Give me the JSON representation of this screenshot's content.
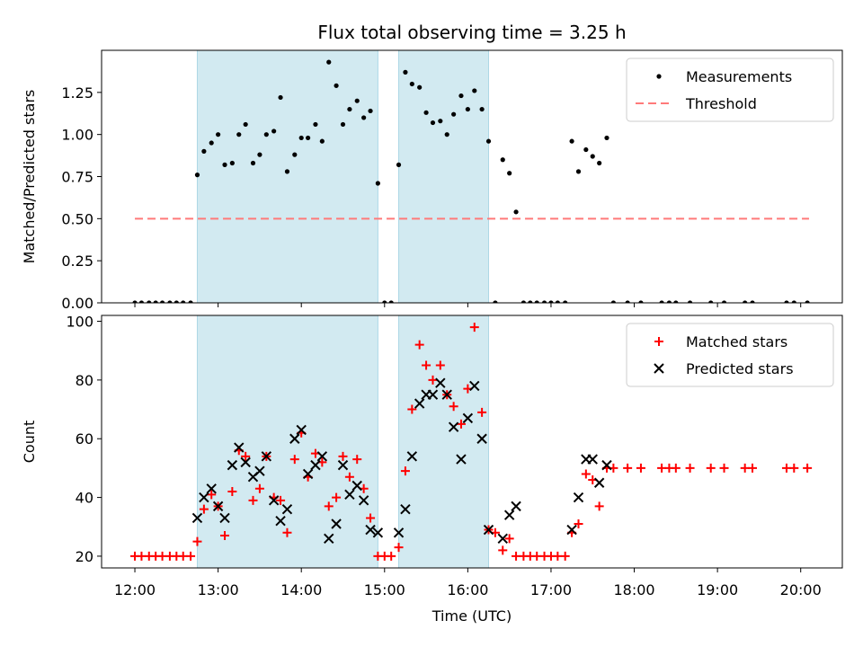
{
  "figure": {
    "title": "Flux total observing time = 3.25 h"
  },
  "chart_data": [
    {
      "type": "scatter",
      "panel": "top",
      "ylabel": "Matched/Predicted stars",
      "xlabel": "",
      "x_unit": "hours (UTC)",
      "xlim": [
        11.6,
        20.5
      ],
      "ylim": [
        0,
        1.5
      ],
      "yticks": [
        {
          "value": 0,
          "label": "0.00"
        },
        {
          "value": 0.25,
          "label": "0.25"
        },
        {
          "value": 0.5,
          "label": "0.50"
        },
        {
          "value": 0.75,
          "label": "0.75"
        },
        {
          "value": 1.0,
          "label": "1.00"
        },
        {
          "value": 1.25,
          "label": "1.25"
        }
      ],
      "shaded_intervals": [
        [
          12.75,
          14.92
        ],
        [
          15.17,
          16.25
        ]
      ],
      "shade_color": "#add8e6",
      "legend": {
        "position": "top-right",
        "entries": [
          "Measurements",
          "Threshold"
        ]
      },
      "series": [
        {
          "name": "Measurements",
          "marker": "dot",
          "color": "#000000",
          "points": [
            [
              12.0,
              0
            ],
            [
              12.08,
              0
            ],
            [
              12.17,
              0
            ],
            [
              12.25,
              0
            ],
            [
              12.33,
              0
            ],
            [
              12.42,
              0
            ],
            [
              12.5,
              0
            ],
            [
              12.58,
              0
            ],
            [
              12.67,
              0
            ],
            [
              12.75,
              0.76
            ],
            [
              12.83,
              0.9
            ],
            [
              12.92,
              0.95
            ],
            [
              13.0,
              1.0
            ],
            [
              13.08,
              0.82
            ],
            [
              13.17,
              0.83
            ],
            [
              13.25,
              1.0
            ],
            [
              13.33,
              1.06
            ],
            [
              13.42,
              0.83
            ],
            [
              13.5,
              0.88
            ],
            [
              13.58,
              1.0
            ],
            [
              13.67,
              1.02
            ],
            [
              13.75,
              1.22
            ],
            [
              13.83,
              0.78
            ],
            [
              13.92,
              0.88
            ],
            [
              14.0,
              0.98
            ],
            [
              14.08,
              0.98
            ],
            [
              14.17,
              1.06
            ],
            [
              14.25,
              0.96
            ],
            [
              14.33,
              1.43
            ],
            [
              14.42,
              1.29
            ],
            [
              14.5,
              1.06
            ],
            [
              14.58,
              1.15
            ],
            [
              14.67,
              1.2
            ],
            [
              14.75,
              1.1
            ],
            [
              14.83,
              1.14
            ],
            [
              14.92,
              0.71
            ],
            [
              15.0,
              0
            ],
            [
              15.08,
              0
            ],
            [
              15.17,
              0.82
            ],
            [
              15.25,
              1.37
            ],
            [
              15.33,
              1.3
            ],
            [
              15.42,
              1.28
            ],
            [
              15.5,
              1.13
            ],
            [
              15.58,
              1.07
            ],
            [
              15.67,
              1.08
            ],
            [
              15.75,
              1.0
            ],
            [
              15.83,
              1.12
            ],
            [
              15.92,
              1.23
            ],
            [
              16.0,
              1.15
            ],
            [
              16.08,
              1.26
            ],
            [
              16.17,
              1.15
            ],
            [
              16.25,
              0.96
            ],
            [
              16.33,
              0
            ],
            [
              16.42,
              0.85
            ],
            [
              16.5,
              0.77
            ],
            [
              16.58,
              0.54
            ],
            [
              16.67,
              0
            ],
            [
              16.75,
              0
            ],
            [
              16.83,
              0
            ],
            [
              16.92,
              0
            ],
            [
              17.0,
              0
            ],
            [
              17.08,
              0
            ],
            [
              17.17,
              0
            ],
            [
              17.25,
              0.96
            ],
            [
              17.33,
              0.78
            ],
            [
              17.42,
              0.91
            ],
            [
              17.5,
              0.87
            ],
            [
              17.58,
              0.83
            ],
            [
              17.67,
              0.98
            ],
            [
              17.75,
              0
            ],
            [
              17.92,
              0
            ],
            [
              18.08,
              0
            ],
            [
              18.33,
              0
            ],
            [
              18.42,
              0
            ],
            [
              18.5,
              0
            ],
            [
              18.67,
              0
            ],
            [
              18.92,
              0
            ],
            [
              19.08,
              0
            ],
            [
              19.33,
              0
            ],
            [
              19.42,
              0
            ],
            [
              19.83,
              0
            ],
            [
              19.92,
              0
            ],
            [
              20.08,
              0
            ]
          ]
        },
        {
          "name": "Threshold",
          "line_style": "dashed",
          "color": "#ff7a7a",
          "points": [
            [
              12.0,
              0.5
            ],
            [
              20.1,
              0.5
            ]
          ]
        }
      ]
    },
    {
      "type": "scatter",
      "panel": "bottom",
      "ylabel": "Count",
      "xlabel": "Time (UTC)",
      "x_unit": "hours (UTC)",
      "xlim": [
        11.6,
        20.5
      ],
      "ylim": [
        16,
        102
      ],
      "yticks": [
        {
          "value": 20,
          "label": "20"
        },
        {
          "value": 40,
          "label": "40"
        },
        {
          "value": 60,
          "label": "60"
        },
        {
          "value": 80,
          "label": "80"
        },
        {
          "value": 100,
          "label": "100"
        }
      ],
      "xticks": [
        {
          "value": 12,
          "label": "12:00"
        },
        {
          "value": 13,
          "label": "13:00"
        },
        {
          "value": 14,
          "label": "14:00"
        },
        {
          "value": 15,
          "label": "15:00"
        },
        {
          "value": 16,
          "label": "16:00"
        },
        {
          "value": 17,
          "label": "17:00"
        },
        {
          "value": 18,
          "label": "18:00"
        },
        {
          "value": 19,
          "label": "19:00"
        },
        {
          "value": 20,
          "label": "20:00"
        }
      ],
      "shaded_intervals": [
        [
          12.75,
          14.92
        ],
        [
          15.17,
          16.25
        ]
      ],
      "shade_color": "#add8e6",
      "legend": {
        "position": "top-right",
        "entries": [
          "Matched stars",
          "Predicted stars"
        ]
      },
      "series": [
        {
          "name": "Matched stars",
          "marker": "plus",
          "color": "#ff0000",
          "points": [
            [
              12.0,
              20
            ],
            [
              12.08,
              20
            ],
            [
              12.17,
              20
            ],
            [
              12.25,
              20
            ],
            [
              12.33,
              20
            ],
            [
              12.42,
              20
            ],
            [
              12.5,
              20
            ],
            [
              12.58,
              20
            ],
            [
              12.67,
              20
            ],
            [
              12.75,
              25
            ],
            [
              12.83,
              36
            ],
            [
              12.92,
              41
            ],
            [
              13.0,
              37
            ],
            [
              13.08,
              27
            ],
            [
              13.17,
              42
            ],
            [
              13.25,
              56
            ],
            [
              13.33,
              54
            ],
            [
              13.42,
              39
            ],
            [
              13.5,
              43
            ],
            [
              13.58,
              54
            ],
            [
              13.67,
              40
            ],
            [
              13.75,
              39
            ],
            [
              13.83,
              28
            ],
            [
              13.92,
              53
            ],
            [
              14.0,
              62
            ],
            [
              14.08,
              47
            ],
            [
              14.17,
              55
            ],
            [
              14.25,
              52
            ],
            [
              14.33,
              37
            ],
            [
              14.42,
              40
            ],
            [
              14.5,
              54
            ],
            [
              14.58,
              47
            ],
            [
              14.67,
              53
            ],
            [
              14.75,
              43
            ],
            [
              14.83,
              33
            ],
            [
              14.92,
              20
            ],
            [
              15.0,
              20
            ],
            [
              15.08,
              20
            ],
            [
              15.17,
              23
            ],
            [
              15.25,
              49
            ],
            [
              15.33,
              70
            ],
            [
              15.42,
              92
            ],
            [
              15.5,
              85
            ],
            [
              15.58,
              80
            ],
            [
              15.67,
              85
            ],
            [
              15.75,
              75
            ],
            [
              15.83,
              71
            ],
            [
              15.92,
              65
            ],
            [
              16.0,
              77
            ],
            [
              16.08,
              98
            ],
            [
              16.17,
              69
            ],
            [
              16.25,
              29
            ],
            [
              16.33,
              28
            ],
            [
              16.42,
              22
            ],
            [
              16.5,
              26
            ],
            [
              16.58,
              20
            ],
            [
              16.67,
              20
            ],
            [
              16.75,
              20
            ],
            [
              16.83,
              20
            ],
            [
              16.92,
              20
            ],
            [
              17.0,
              20
            ],
            [
              17.08,
              20
            ],
            [
              17.17,
              20
            ],
            [
              17.25,
              28
            ],
            [
              17.33,
              31
            ],
            [
              17.42,
              48
            ],
            [
              17.5,
              46
            ],
            [
              17.58,
              37
            ],
            [
              17.67,
              50
            ],
            [
              17.75,
              50
            ],
            [
              17.92,
              50
            ],
            [
              18.08,
              50
            ],
            [
              18.33,
              50
            ],
            [
              18.42,
              50
            ],
            [
              18.5,
              50
            ],
            [
              18.67,
              50
            ],
            [
              18.92,
              50
            ],
            [
              19.08,
              50
            ],
            [
              19.33,
              50
            ],
            [
              19.42,
              50
            ],
            [
              19.83,
              50
            ],
            [
              19.92,
              50
            ],
            [
              20.08,
              50
            ]
          ]
        },
        {
          "name": "Predicted stars",
          "marker": "cross",
          "color": "#000000",
          "points": [
            [
              12.75,
              33
            ],
            [
              12.83,
              40
            ],
            [
              12.92,
              43
            ],
            [
              13.0,
              37
            ],
            [
              13.08,
              33
            ],
            [
              13.17,
              51
            ],
            [
              13.25,
              57
            ],
            [
              13.33,
              52
            ],
            [
              13.42,
              47
            ],
            [
              13.5,
              49
            ],
            [
              13.58,
              54
            ],
            [
              13.67,
              39
            ],
            [
              13.75,
              32
            ],
            [
              13.83,
              36
            ],
            [
              13.92,
              60
            ],
            [
              14.0,
              63
            ],
            [
              14.08,
              48
            ],
            [
              14.17,
              51
            ],
            [
              14.25,
              54
            ],
            [
              14.33,
              26
            ],
            [
              14.42,
              31
            ],
            [
              14.5,
              51
            ],
            [
              14.58,
              41
            ],
            [
              14.67,
              44
            ],
            [
              14.75,
              39
            ],
            [
              14.83,
              29
            ],
            [
              14.92,
              28
            ],
            [
              15.17,
              28
            ],
            [
              15.25,
              36
            ],
            [
              15.33,
              54
            ],
            [
              15.42,
              72
            ],
            [
              15.5,
              75
            ],
            [
              15.58,
              75
            ],
            [
              15.67,
              79
            ],
            [
              15.75,
              75
            ],
            [
              15.83,
              64
            ],
            [
              15.92,
              53
            ],
            [
              16.0,
              67
            ],
            [
              16.08,
              78
            ],
            [
              16.17,
              60
            ],
            [
              16.25,
              29
            ],
            [
              16.42,
              26
            ],
            [
              16.5,
              34
            ],
            [
              16.58,
              37
            ],
            [
              17.25,
              29
            ],
            [
              17.33,
              40
            ],
            [
              17.42,
              53
            ],
            [
              17.5,
              53
            ],
            [
              17.58,
              45
            ],
            [
              17.67,
              51
            ]
          ]
        }
      ]
    }
  ]
}
